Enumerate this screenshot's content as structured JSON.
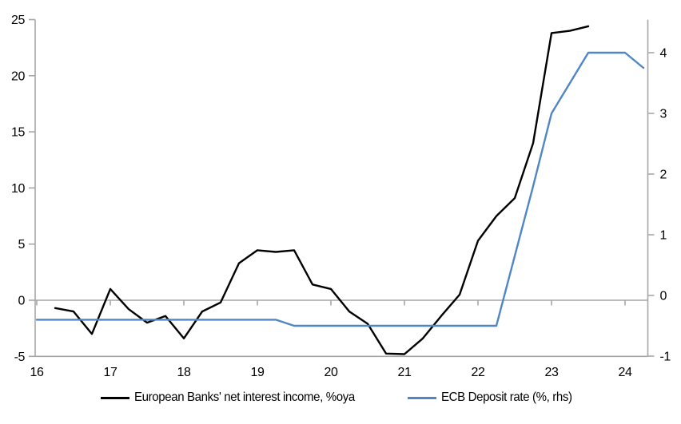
{
  "chart_data": {
    "type": "line",
    "title": "",
    "xlabel": "",
    "ylabel_left": "",
    "ylabel_right": "",
    "grid": "zero-line-only",
    "legend_position": "bottom",
    "x_axis": {
      "ticks": [
        16,
        17,
        18,
        19,
        20,
        21,
        22,
        23,
        24
      ],
      "range": [
        16,
        24.32
      ]
    },
    "left_axis": {
      "ticks": [
        -5,
        0,
        5,
        10,
        15,
        20,
        25
      ],
      "range": [
        -5,
        25
      ]
    },
    "right_axis": {
      "ticks": [
        -1,
        0,
        1,
        2,
        3,
        4
      ],
      "range": [
        -1.0,
        4.55
      ]
    },
    "series": [
      {
        "name": "European Banks' net interest income, %oya",
        "axis": "left",
        "color": "#000000",
        "line_width": 2.4,
        "x": [
          16.25,
          16.5,
          16.75,
          17.0,
          17.25,
          17.5,
          17.75,
          18.0,
          18.25,
          18.5,
          18.75,
          19.0,
          19.25,
          19.5,
          19.75,
          20.0,
          20.25,
          20.5,
          20.75,
          21.0,
          21.25,
          21.5,
          21.75,
          22.0,
          22.25,
          22.5,
          22.75,
          23.0,
          23.25,
          23.5
        ],
        "values": [
          -0.7,
          -1.0,
          -3.0,
          1.0,
          -0.8,
          -2.0,
          -1.4,
          -3.4,
          -1.0,
          -0.2,
          3.3,
          4.45,
          4.3,
          4.45,
          1.4,
          1.0,
          -1.0,
          -2.1,
          -4.75,
          -4.8,
          -3.4,
          -1.4,
          0.5,
          5.3,
          7.5,
          9.1,
          14.0,
          23.8,
          24.0,
          24.4
        ]
      },
      {
        "name": "ECB Deposit rate (%, rhs)",
        "axis": "right",
        "color": "#4f86c6",
        "line_width": 2.4,
        "x": [
          16.0,
          16.25,
          16.5,
          16.75,
          17.0,
          17.25,
          17.5,
          17.75,
          18.0,
          18.25,
          18.5,
          18.75,
          19.0,
          19.25,
          19.5,
          19.75,
          20.0,
          20.25,
          20.5,
          20.75,
          21.0,
          21.25,
          21.5,
          21.75,
          22.0,
          22.25,
          22.5,
          22.75,
          23.0,
          23.25,
          23.5,
          23.75,
          24.0,
          24.25
        ],
        "values": [
          -0.4,
          -0.4,
          -0.4,
          -0.4,
          -0.4,
          -0.4,
          -0.4,
          -0.4,
          -0.4,
          -0.4,
          -0.4,
          -0.4,
          -0.4,
          -0.4,
          -0.5,
          -0.5,
          -0.5,
          -0.5,
          -0.5,
          -0.5,
          -0.5,
          -0.5,
          -0.5,
          -0.5,
          -0.5,
          -0.5,
          0.65,
          1.8,
          3.0,
          3.5,
          4.0,
          4.0,
          4.0,
          3.75
        ]
      }
    ]
  },
  "legend": {
    "series1_label": "European Banks' net interest income, %oya",
    "series2_label": "ECB Deposit rate (%, rhs)"
  },
  "colors": {
    "series1": "#000000",
    "series2": "#4f86c6",
    "axis_line": "#a6a6a6",
    "zero_line": "#a6a6a6",
    "tick_text": "#000000",
    "background": "#ffffff"
  }
}
